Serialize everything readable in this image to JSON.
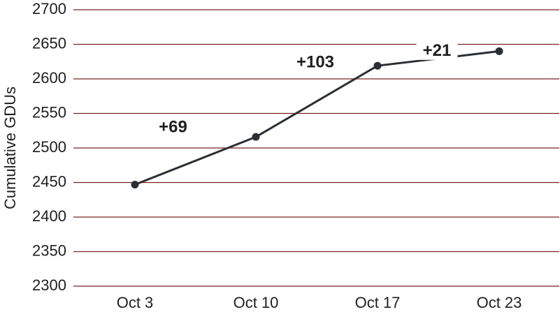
{
  "chart_data": {
    "type": "line",
    "title": "",
    "xlabel": "",
    "ylabel": "Cumulative GDUs",
    "categories": [
      "Oct 3",
      "Oct 10",
      "Oct 17",
      "Oct 23"
    ],
    "series": [
      {
        "values": [
          2447,
          2516,
          2619,
          2640
        ]
      }
    ],
    "ylim": [
      2300,
      2700
    ],
    "yticks": [
      2300,
      2350,
      2400,
      2450,
      2500,
      2550,
      2600,
      2650,
      2700
    ],
    "annotations": [
      {
        "text": "+69",
        "between": [
          0,
          1
        ]
      },
      {
        "text": "+103",
        "between": [
          1,
          2
        ]
      },
      {
        "text": "+21",
        "between": [
          2,
          3
        ]
      }
    ],
    "grid": true,
    "legend": "none",
    "colors": {
      "line": "#2b2f33",
      "gridline": "#7a2222",
      "text": "#1f1f1f"
    }
  }
}
